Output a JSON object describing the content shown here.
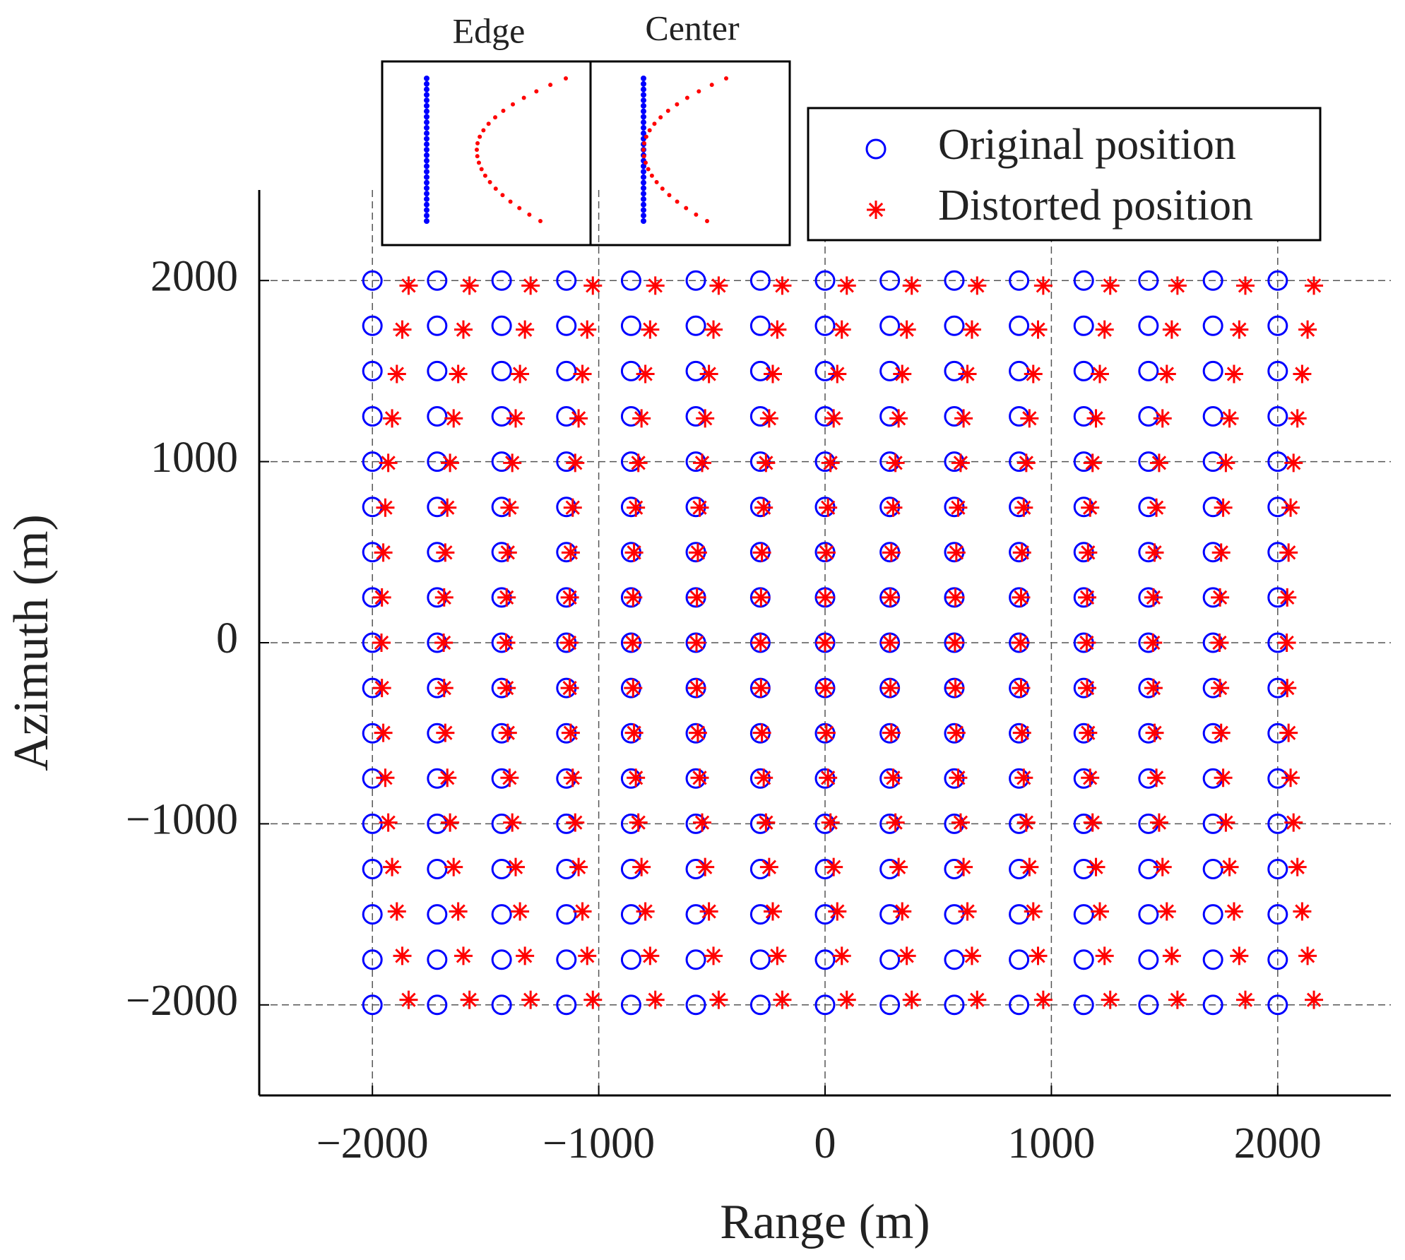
{
  "chart_data": {
    "type": "scatter",
    "xlabel": "Range (m)",
    "ylabel": "Azimuth (m)",
    "annotations": [
      "Edge",
      "Center"
    ],
    "xlim": [
      -2500,
      2500
    ],
    "ylim": [
      -2500,
      2500
    ],
    "xticks": [
      {
        "value": -2000,
        "label": "−2000"
      },
      {
        "value": -1000,
        "label": "−1000"
      },
      0,
      1000,
      2000
    ],
    "yticks": [
      {
        "value": -2000,
        "label": "−2000"
      },
      {
        "value": -1000,
        "label": "−1000"
      },
      0,
      1000,
      2000
    ],
    "grid": true,
    "legend": "upper right",
    "series": [
      {
        "name": "Original position",
        "color": "#0000ff",
        "marker": "circle",
        "x": [
          -2000,
          -1714,
          -1429,
          -1143,
          -857,
          -571,
          -286,
          0,
          286,
          571,
          857,
          1143,
          1429,
          1714,
          2000,
          -2000,
          -1714,
          -1429,
          -1143,
          -857,
          -571,
          -286,
          0,
          286,
          571,
          857,
          1143,
          1429,
          1714,
          2000,
          -2000,
          -1714,
          -1429,
          -1143,
          -857,
          -571,
          -286,
          0,
          286,
          571,
          857,
          1143,
          1429,
          1714,
          2000,
          -2000,
          -1714,
          -1429,
          -1143,
          -857,
          -571,
          -286,
          0,
          286,
          571,
          857,
          1143,
          1429,
          1714,
          2000,
          -2000,
          -1714,
          -1429,
          -1143,
          -857,
          -571,
          -286,
          0,
          286,
          571,
          857,
          1143,
          1429,
          1714,
          2000,
          -2000,
          -1714,
          -1429,
          -1143,
          -857,
          -571,
          -286,
          0,
          286,
          571,
          857,
          1143,
          1429,
          1714,
          2000,
          -2000,
          -1714,
          -1429,
          -1143,
          -857,
          -571,
          -286,
          0,
          286,
          571,
          857,
          1143,
          1429,
          1714,
          2000,
          -2000,
          -1714,
          -1429,
          -1143,
          -857,
          -571,
          -286,
          0,
          286,
          571,
          857,
          1143,
          1429,
          1714,
          2000,
          -2000,
          -1714,
          -1429,
          -1143,
          -857,
          -571,
          -286,
          0,
          286,
          571,
          857,
          1143,
          1429,
          1714,
          2000,
          -2000,
          -1714,
          -1429,
          -1143,
          -857,
          -571,
          -286,
          0,
          286,
          571,
          857,
          1143,
          1429,
          1714,
          2000,
          -2000,
          -1714,
          -1429,
          -1143,
          -857,
          -571,
          -286,
          0,
          286,
          571,
          857,
          1143,
          1429,
          1714,
          2000,
          -2000,
          -1714,
          -1429,
          -1143,
          -857,
          -571,
          -286,
          0,
          286,
          571,
          857,
          1143,
          1429,
          1714,
          2000,
          -2000,
          -1714,
          -1429,
          -1143,
          -857,
          -571,
          -286,
          0,
          286,
          571,
          857,
          1143,
          1429,
          1714,
          2000,
          -2000,
          -1714,
          -1429,
          -1143,
          -857,
          -571,
          -286,
          0,
          286,
          571,
          857,
          1143,
          1429,
          1714,
          2000,
          -2000,
          -1714,
          -1429,
          -1143,
          -857,
          -571,
          -286,
          0,
          286,
          571,
          857,
          1143,
          1429,
          1714,
          2000,
          -2000,
          -1714,
          -1429,
          -1143,
          -857,
          -571,
          -286,
          0,
          286,
          571,
          857,
          1143,
          1429,
          1714,
          2000,
          -2000,
          -1714,
          -1429,
          -1143,
          -857,
          -571,
          -286,
          0,
          286,
          571,
          857,
          1143,
          1429,
          1714,
          2000
        ],
        "values": [
          2000,
          2000,
          2000,
          2000,
          2000,
          2000,
          2000,
          2000,
          2000,
          2000,
          2000,
          2000,
          2000,
          2000,
          2000,
          1750,
          1750,
          1750,
          1750,
          1750,
          1750,
          1750,
          1750,
          1750,
          1750,
          1750,
          1750,
          1750,
          1750,
          1750,
          1500,
          1500,
          1500,
          1500,
          1500,
          1500,
          1500,
          1500,
          1500,
          1500,
          1500,
          1500,
          1500,
          1500,
          1500,
          1250,
          1250,
          1250,
          1250,
          1250,
          1250,
          1250,
          1250,
          1250,
          1250,
          1250,
          1250,
          1250,
          1250,
          1250,
          1000,
          1000,
          1000,
          1000,
          1000,
          1000,
          1000,
          1000,
          1000,
          1000,
          1000,
          1000,
          1000,
          1000,
          1000,
          750,
          750,
          750,
          750,
          750,
          750,
          750,
          750,
          750,
          750,
          750,
          750,
          750,
          750,
          750,
          500,
          500,
          500,
          500,
          500,
          500,
          500,
          500,
          500,
          500,
          500,
          500,
          500,
          500,
          500,
          250,
          250,
          250,
          250,
          250,
          250,
          250,
          250,
          250,
          250,
          250,
          250,
          250,
          250,
          250,
          0,
          0,
          0,
          0,
          0,
          0,
          0,
          0,
          0,
          0,
          0,
          0,
          0,
          0,
          0,
          -250,
          -250,
          -250,
          -250,
          -250,
          -250,
          -250,
          -250,
          -250,
          -250,
          -250,
          -250,
          -250,
          -250,
          -250,
          -500,
          -500,
          -500,
          -500,
          -500,
          -500,
          -500,
          -500,
          -500,
          -500,
          -500,
          -500,
          -500,
          -500,
          -500,
          -750,
          -750,
          -750,
          -750,
          -750,
          -750,
          -750,
          -750,
          -750,
          -750,
          -750,
          -750,
          -750,
          -750,
          -750,
          -1000,
          -1000,
          -1000,
          -1000,
          -1000,
          -1000,
          -1000,
          -1000,
          -1000,
          -1000,
          -1000,
          -1000,
          -1000,
          -1000,
          -1000,
          -1250,
          -1250,
          -1250,
          -1250,
          -1250,
          -1250,
          -1250,
          -1250,
          -1250,
          -1250,
          -1250,
          -1250,
          -1250,
          -1250,
          -1250,
          -1500,
          -1500,
          -1500,
          -1500,
          -1500,
          -1500,
          -1500,
          -1500,
          -1500,
          -1500,
          -1500,
          -1500,
          -1500,
          -1500,
          -1500,
          -1750,
          -1750,
          -1750,
          -1750,
          -1750,
          -1750,
          -1750,
          -1750,
          -1750,
          -1750,
          -1750,
          -1750,
          -1750,
          -1750,
          -1750,
          -2000,
          -2000,
          -2000,
          -2000,
          -2000,
          -2000,
          -2000,
          -2000,
          -2000,
          -2000,
          -2000,
          -2000,
          -2000,
          -2000,
          -2000
        ]
      },
      {
        "name": "Distorted position",
        "color": "#ff0000",
        "marker": "star",
        "x": [
          -1840,
          -1571,
          -1301,
          -1026,
          -750,
          -470,
          -189,
          96,
          383,
          672,
          964,
          1260,
          1557,
          1857,
          2160,
          -1868,
          -1598,
          -1326,
          -1051,
          -773,
          -493,
          -211,
          74,
          361,
          649,
          941,
          1235,
          1532,
          1830,
          2132,
          -1892,
          -1621,
          -1348,
          -1072,
          -794,
          -513,
          -231,
          54,
          341,
          629,
          920,
          1214,
          1510,
          1807,
          2108,
          -1913,
          -1641,
          -1367,
          -1089,
          -811,
          -530,
          -247,
          38,
          325,
          612,
          903,
          1197,
          1491,
          1787,
          2087,
          -1930,
          -1657,
          -1382,
          -1104,
          -825,
          -543,
          -261,
          24,
          311,
          599,
          889,
          1182,
          1476,
          1771,
          2070,
          -1943,
          -1669,
          -1394,
          -1115,
          -836,
          -554,
          -271,
          13,
          301,
          588,
          878,
          1171,
          1464,
          1759,
          2057,
          -1952,
          -1678,
          -1402,
          -1124,
          -844,
          -562,
          -279,
          6,
          293,
          580,
          870,
          1162,
          1456,
          1750,
          2048,
          -1958,
          -1683,
          -1407,
          -1128,
          -848,
          -566,
          -283,
          1,
          289,
          576,
          866,
          1158,
          1451,
          1745,
          2042,
          -1960,
          -1685,
          -1409,
          -1130,
          -850,
          -568,
          -285,
          0,
          287,
          574,
          864,
          1156,
          1449,
          1743,
          2040,
          -1958,
          -1683,
          -1407,
          -1128,
          -848,
          -566,
          -283,
          1,
          289,
          576,
          866,
          1158,
          1451,
          1745,
          2042,
          -1952,
          -1678,
          -1402,
          -1124,
          -844,
          -562,
          -279,
          6,
          293,
          580,
          870,
          1162,
          1456,
          1750,
          2048,
          -1943,
          -1669,
          -1394,
          -1115,
          -836,
          -554,
          -271,
          13,
          301,
          588,
          878,
          1171,
          1464,
          1759,
          2057,
          -1930,
          -1657,
          -1382,
          -1104,
          -825,
          -543,
          -261,
          24,
          311,
          599,
          889,
          1182,
          1476,
          1771,
          2070,
          -1913,
          -1641,
          -1367,
          -1089,
          -811,
          -530,
          -247,
          38,
          325,
          612,
          903,
          1197,
          1491,
          1787,
          2087,
          -1892,
          -1621,
          -1348,
          -1072,
          -794,
          -513,
          -231,
          54,
          341,
          629,
          920,
          1214,
          1510,
          1807,
          2108,
          -1868,
          -1598,
          -1326,
          -1051,
          -773,
          -493,
          -211,
          74,
          361,
          649,
          941,
          1235,
          1532,
          1830,
          2132,
          -1840,
          -1571,
          -1301,
          -1026,
          -750,
          -470,
          -189,
          96,
          383,
          672,
          964,
          1260,
          1557,
          1857,
          2160
        ],
        "values": [
          1972,
          1972,
          1972,
          1972,
          1972,
          1972,
          1972,
          1972,
          1972,
          1972,
          1972,
          1972,
          1972,
          1972,
          1972,
          1729,
          1729,
          1729,
          1729,
          1729,
          1729,
          1729,
          1729,
          1729,
          1729,
          1729,
          1729,
          1729,
          1729,
          1729,
          1484,
          1484,
          1484,
          1484,
          1484,
          1484,
          1484,
          1484,
          1484,
          1484,
          1484,
          1484,
          1484,
          1484,
          1484,
          1239,
          1239,
          1239,
          1239,
          1239,
          1239,
          1239,
          1239,
          1239,
          1239,
          1239,
          1239,
          1239,
          1239,
          1239,
          993,
          993,
          993,
          993,
          993,
          993,
          993,
          993,
          993,
          993,
          993,
          993,
          993,
          993,
          993,
          746,
          746,
          746,
          746,
          746,
          746,
          746,
          746,
          746,
          746,
          746,
          746,
          746,
          746,
          746,
          498,
          498,
          498,
          498,
          498,
          498,
          498,
          498,
          498,
          498,
          498,
          498,
          498,
          498,
          498,
          250,
          250,
          250,
          250,
          250,
          250,
          250,
          250,
          250,
          250,
          250,
          250,
          250,
          250,
          250,
          0,
          0,
          0,
          0,
          0,
          0,
          0,
          0,
          0,
          0,
          0,
          0,
          0,
          0,
          0,
          -250,
          -250,
          -250,
          -250,
          -250,
          -250,
          -250,
          -250,
          -250,
          -250,
          -250,
          -250,
          -250,
          -250,
          -250,
          -498,
          -498,
          -498,
          -498,
          -498,
          -498,
          -498,
          -498,
          -498,
          -498,
          -498,
          -498,
          -498,
          -498,
          -498,
          -746,
          -746,
          -746,
          -746,
          -746,
          -746,
          -746,
          -746,
          -746,
          -746,
          -746,
          -746,
          -746,
          -746,
          -746,
          -993,
          -993,
          -993,
          -993,
          -993,
          -993,
          -993,
          -993,
          -993,
          -993,
          -993,
          -993,
          -993,
          -993,
          -993,
          -1239,
          -1239,
          -1239,
          -1239,
          -1239,
          -1239,
          -1239,
          -1239,
          -1239,
          -1239,
          -1239,
          -1239,
          -1239,
          -1239,
          -1239,
          -1484,
          -1484,
          -1484,
          -1484,
          -1484,
          -1484,
          -1484,
          -1484,
          -1484,
          -1484,
          -1484,
          -1484,
          -1484,
          -1484,
          -1484,
          -1729,
          -1729,
          -1729,
          -1729,
          -1729,
          -1729,
          -1729,
          -1729,
          -1729,
          -1729,
          -1729,
          -1729,
          -1729,
          -1729,
          -1729,
          -1972,
          -1972,
          -1972,
          -1972,
          -1972,
          -1972,
          -1972,
          -1972,
          -1972,
          -1972,
          -1972,
          -1972,
          -1972,
          -1972,
          -1972
        ]
      }
    ]
  }
}
